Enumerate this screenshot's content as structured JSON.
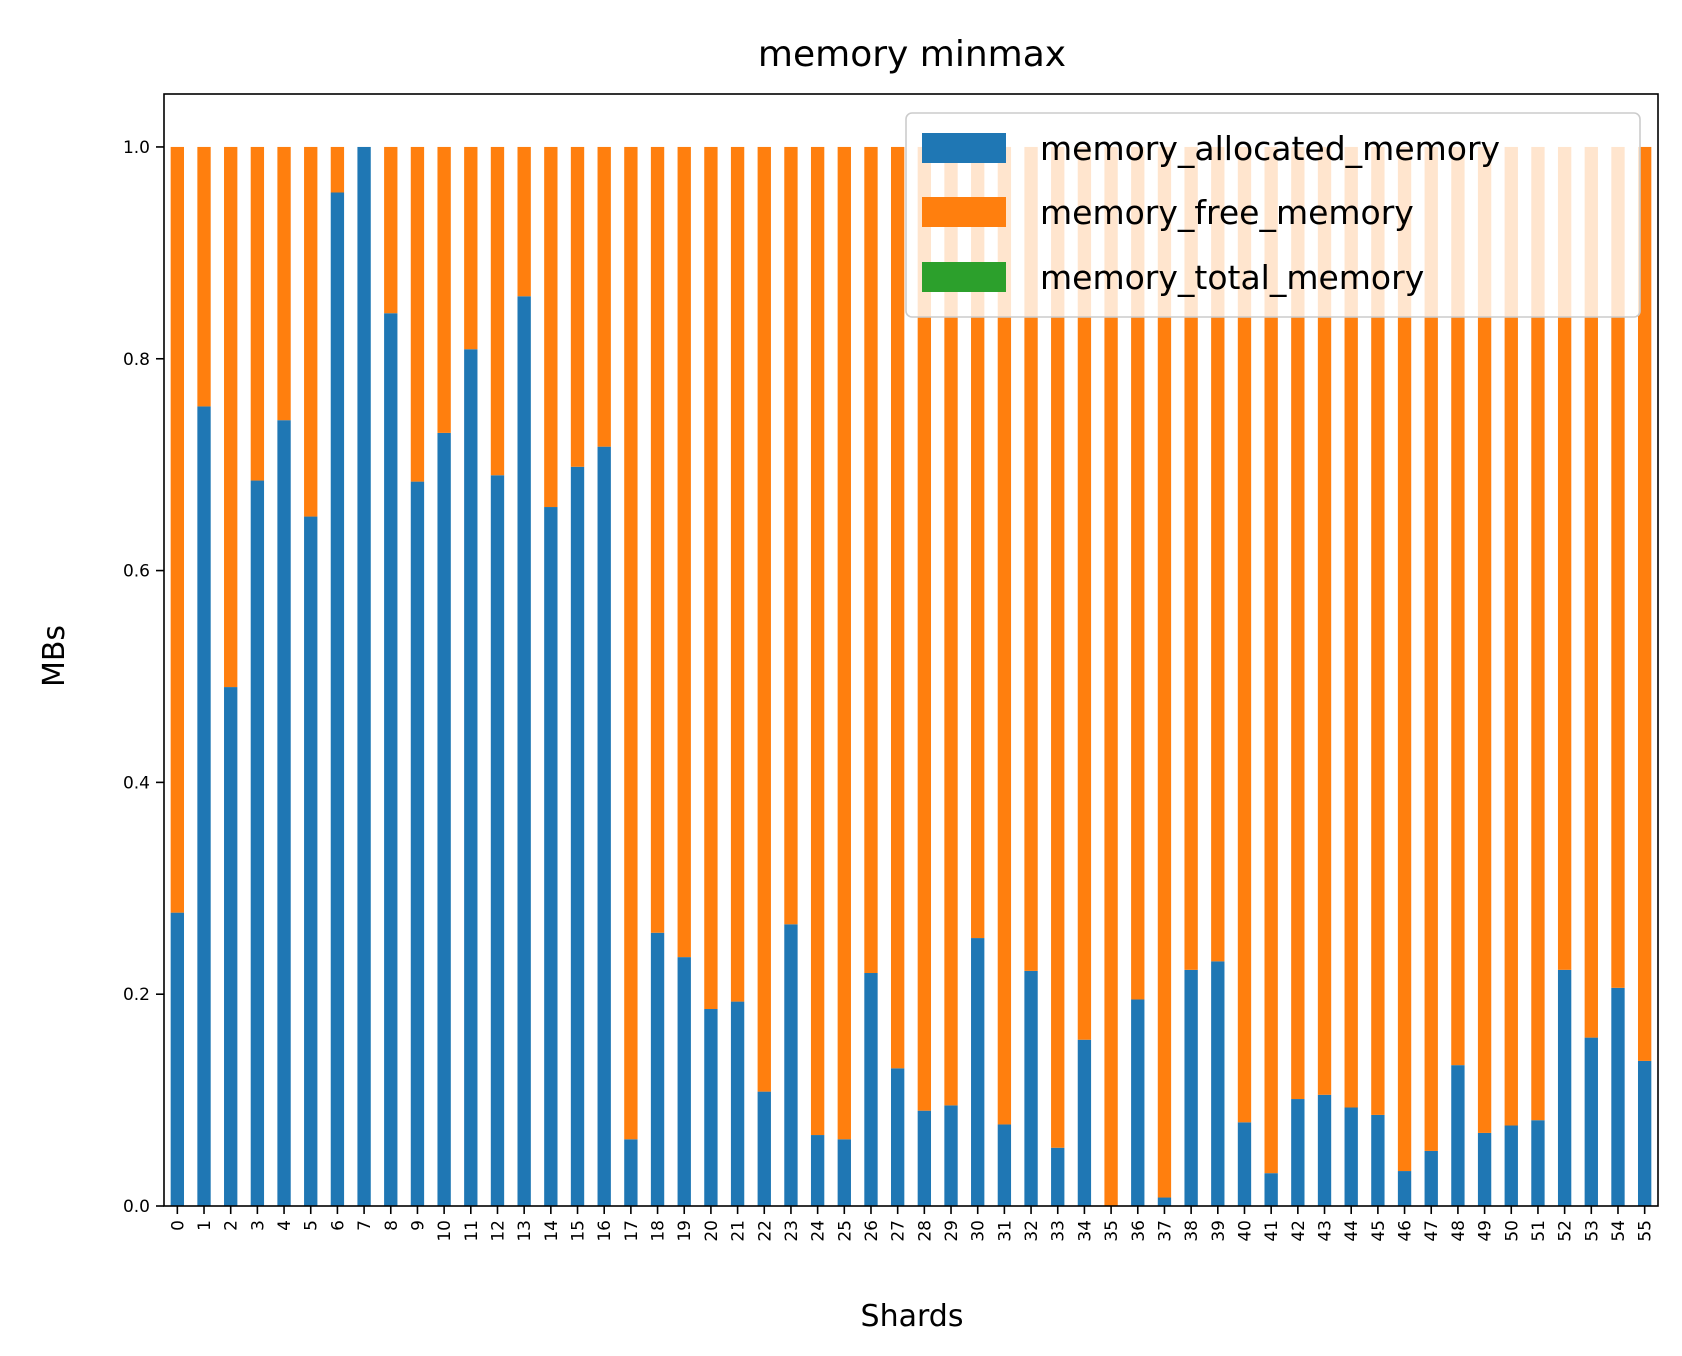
{
  "chart_data": {
    "type": "bar",
    "stacked": true,
    "title": "memory minmax",
    "xlabel": "Shards",
    "ylabel": "MBs",
    "ylim": [
      0,
      1.05
    ],
    "yticks": [
      "0.0",
      "0.2",
      "0.4",
      "0.6",
      "0.8",
      "1.0"
    ],
    "grid": false,
    "legend_position": "top-right",
    "categories": [
      "0",
      "1",
      "2",
      "3",
      "4",
      "5",
      "6",
      "7",
      "8",
      "9",
      "10",
      "11",
      "12",
      "13",
      "14",
      "15",
      "16",
      "17",
      "18",
      "19",
      "20",
      "21",
      "22",
      "23",
      "24",
      "25",
      "26",
      "27",
      "28",
      "29",
      "30",
      "31",
      "32",
      "33",
      "34",
      "35",
      "36",
      "37",
      "38",
      "39",
      "40",
      "41",
      "42",
      "43",
      "44",
      "45",
      "46",
      "47",
      "48",
      "49",
      "50",
      "51",
      "52",
      "53",
      "54",
      "55"
    ],
    "series": [
      {
        "name": "memory_allocated_memory",
        "color": "#1f77b4",
        "values": [
          0.277,
          0.755,
          0.49,
          0.685,
          0.742,
          0.651,
          0.957,
          1.0,
          0.843,
          0.684,
          0.73,
          0.809,
          0.69,
          0.859,
          0.66,
          0.698,
          0.717,
          0.063,
          0.258,
          0.235,
          0.186,
          0.193,
          0.108,
          0.266,
          0.067,
          0.063,
          0.22,
          0.13,
          0.09,
          0.095,
          0.253,
          0.077,
          0.222,
          0.055,
          0.157,
          0.0,
          0.195,
          0.008,
          0.223,
          0.231,
          0.079,
          0.031,
          0.101,
          0.105,
          0.093,
          0.086,
          0.033,
          0.052,
          0.133,
          0.069,
          0.076,
          0.081,
          0.223,
          0.159,
          0.206,
          0.137
        ]
      },
      {
        "name": "memory_free_memory",
        "color": "#ff7f0e",
        "values": [
          0.723,
          0.245,
          0.51,
          0.315,
          0.258,
          0.349,
          0.043,
          0.0,
          0.157,
          0.316,
          0.27,
          0.191,
          0.31,
          0.141,
          0.34,
          0.302,
          0.283,
          0.937,
          0.742,
          0.765,
          0.814,
          0.807,
          0.892,
          0.734,
          0.933,
          0.937,
          0.78,
          0.87,
          0.91,
          0.905,
          0.747,
          0.923,
          0.778,
          0.945,
          0.843,
          1.0,
          0.805,
          0.992,
          0.777,
          0.769,
          0.921,
          0.969,
          0.899,
          0.895,
          0.907,
          0.914,
          0.967,
          0.948,
          0.867,
          0.931,
          0.924,
          0.919,
          0.777,
          0.841,
          0.794,
          0.863
        ]
      },
      {
        "name": "memory_total_memory",
        "color": "#2ca02c",
        "values": [
          0,
          0,
          0,
          0,
          0,
          0,
          0,
          0,
          0,
          0,
          0,
          0,
          0,
          0,
          0,
          0,
          0,
          0,
          0,
          0,
          0,
          0,
          0,
          0,
          0,
          0,
          0,
          0,
          0,
          0,
          0,
          0,
          0,
          0,
          0,
          0,
          0,
          0,
          0,
          0,
          0,
          0,
          0,
          0,
          0,
          0,
          0,
          0,
          0,
          0,
          0,
          0,
          0,
          0,
          0,
          0
        ]
      }
    ]
  }
}
